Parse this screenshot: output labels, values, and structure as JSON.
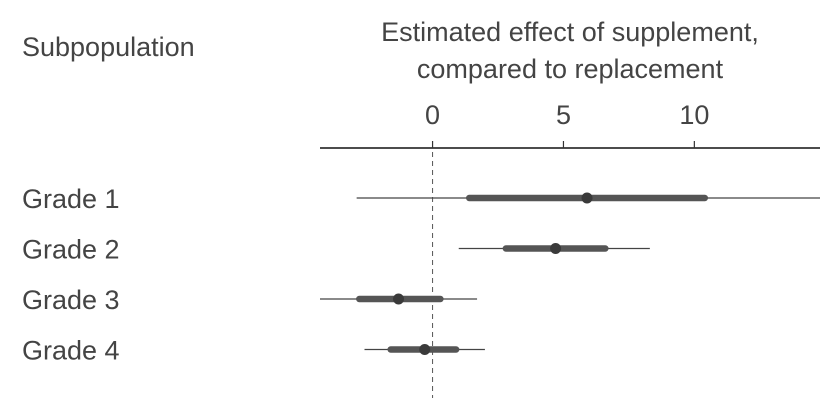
{
  "chart_data": {
    "type": "forest",
    "row_header": "Subpopulation",
    "axis_title_lines": [
      "Estimated effect of supplement,",
      "compared to replacement"
    ],
    "xlim": [
      -4.3,
      14.8
    ],
    "ticks": [
      0,
      5,
      10
    ],
    "tick_labels": [
      "0",
      "5",
      "10"
    ],
    "reference_line": 0,
    "rows": [
      {
        "label": "Grade 1",
        "estimate": 5.9,
        "inner": [
          1.4,
          10.4
        ],
        "outer": [
          -2.9,
          14.8
        ]
      },
      {
        "label": "Grade 2",
        "estimate": 4.7,
        "inner": [
          2.8,
          6.6
        ],
        "outer": [
          1.0,
          8.3
        ]
      },
      {
        "label": "Grade 3",
        "estimate": -1.3,
        "inner": [
          -2.8,
          0.3
        ],
        "outer": [
          -4.3,
          1.7
        ]
      },
      {
        "label": "Grade 4",
        "estimate": -0.3,
        "inner": [
          -1.6,
          0.9
        ],
        "outer": [
          -2.6,
          2.0
        ]
      }
    ]
  }
}
